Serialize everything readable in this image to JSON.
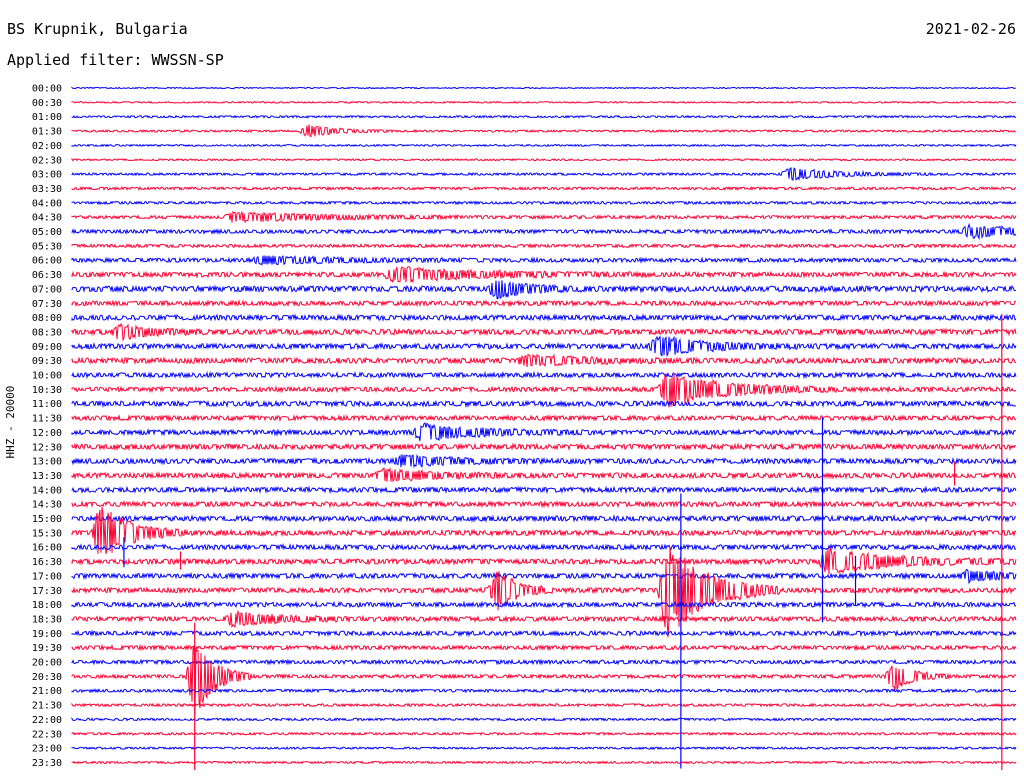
{
  "header": {
    "station": "BS Krupnik, Bulgaria",
    "filter": "Applied filter: WWSSN-SP",
    "date": "2021-02-26"
  },
  "chart_data": {
    "type": "seismogram",
    "title": "BS Krupnik, Bulgaria",
    "ylabel": "HHZ - 20000",
    "channel": "HHZ",
    "trace_minutes": 30,
    "colors": [
      "#0000ff",
      "#ff0033"
    ],
    "rows": [
      "00:00",
      "00:30",
      "01:00",
      "01:30",
      "02:00",
      "02:30",
      "03:00",
      "03:30",
      "04:00",
      "04:30",
      "05:00",
      "05:30",
      "06:00",
      "06:30",
      "07:00",
      "07:30",
      "08:00",
      "08:30",
      "09:00",
      "09:30",
      "10:00",
      "10:30",
      "11:00",
      "11:30",
      "12:00",
      "12:30",
      "13:00",
      "13:30",
      "14:00",
      "14:30",
      "15:00",
      "15:30",
      "16:00",
      "16:30",
      "17:00",
      "17:30",
      "18:00",
      "18:30",
      "19:00",
      "19:30",
      "20:00",
      "20:30",
      "21:00",
      "21:30",
      "22:00",
      "22:30",
      "23:00",
      "23:30"
    ],
    "noise_level": [
      0.4,
      0.5,
      0.7,
      0.7,
      0.6,
      0.6,
      0.8,
      0.9,
      0.9,
      1.1,
      1.3,
      1.1,
      1.4,
      1.7,
      2.0,
      1.6,
      1.8,
      1.9,
      1.8,
      1.9,
      1.6,
      1.6,
      1.8,
      1.6,
      1.7,
      1.8,
      1.8,
      1.8,
      1.7,
      1.7,
      1.8,
      1.8,
      1.7,
      1.8,
      1.7,
      1.7,
      1.6,
      1.6,
      1.5,
      1.4,
      1.3,
      1.2,
      1.0,
      0.9,
      0.8,
      0.8,
      0.7,
      0.7
    ],
    "events": [
      {
        "row": 3,
        "t": 0.25,
        "amp": 6,
        "dur": 0.03
      },
      {
        "row": 6,
        "t": 0.76,
        "amp": 6,
        "dur": 0.05
      },
      {
        "row": 9,
        "t": 0.17,
        "amp": 5,
        "dur": 0.09
      },
      {
        "row": 10,
        "t": 0.95,
        "amp": 6,
        "dur": 0.06
      },
      {
        "row": 12,
        "t": 0.2,
        "amp": 4,
        "dur": 0.08
      },
      {
        "row": 13,
        "t": 0.34,
        "amp": 7,
        "dur": 0.09
      },
      {
        "row": 14,
        "t": 0.45,
        "amp": 9,
        "dur": 0.03
      },
      {
        "row": 17,
        "t": 0.05,
        "amp": 7,
        "dur": 0.03
      },
      {
        "row": 18,
        "t": 0.62,
        "amp": 10,
        "dur": 0.05
      },
      {
        "row": 19,
        "t": 0.48,
        "amp": 5,
        "dur": 0.06
      },
      {
        "row": 21,
        "t": 0.63,
        "amp": 18,
        "dur": 0.06
      },
      {
        "row": 24,
        "t": 0.37,
        "amp": 8,
        "dur": 0.06
      },
      {
        "row": 26,
        "t": 0.35,
        "amp": 6,
        "dur": 0.05
      },
      {
        "row": 27,
        "t": 0.33,
        "amp": 6,
        "dur": 0.05
      },
      {
        "row": 31,
        "t": 0.03,
        "amp": 28,
        "dur": 0.03
      },
      {
        "row": 33,
        "t": 0.8,
        "amp": 12,
        "dur": 0.07
      },
      {
        "row": 34,
        "t": 0.95,
        "amp": 6,
        "dur": 0.03
      },
      {
        "row": 35,
        "t": 0.63,
        "amp": 50,
        "dur": 0.04
      },
      {
        "row": 35,
        "t": 0.45,
        "amp": 22,
        "dur": 0.02
      },
      {
        "row": 37,
        "t": 0.17,
        "amp": 7,
        "dur": 0.05
      },
      {
        "row": 41,
        "t": 0.13,
        "amp": 40,
        "dur": 0.02
      },
      {
        "row": 41,
        "t": 0.87,
        "amp": 15,
        "dur": 0.02
      }
    ],
    "spikes": [
      {
        "row": 17,
        "t": 0.985,
        "up": 18,
        "down": 440
      },
      {
        "row": 24,
        "t": 0.795,
        "up": 15,
        "down": 190
      },
      {
        "row": 27,
        "t": 0.935,
        "up": 14,
        "down": 10
      },
      {
        "row": 30,
        "t": 0.645,
        "up": 25,
        "down": 250
      },
      {
        "row": 32,
        "t": 0.055,
        "up": 10,
        "down": 20
      },
      {
        "row": 33,
        "t": 0.115,
        "up": 10,
        "down": 8
      },
      {
        "row": 34,
        "t": 0.83,
        "up": 20,
        "down": 30
      },
      {
        "row": 39,
        "t": 0.13,
        "up": 25,
        "down": 130
      }
    ]
  }
}
